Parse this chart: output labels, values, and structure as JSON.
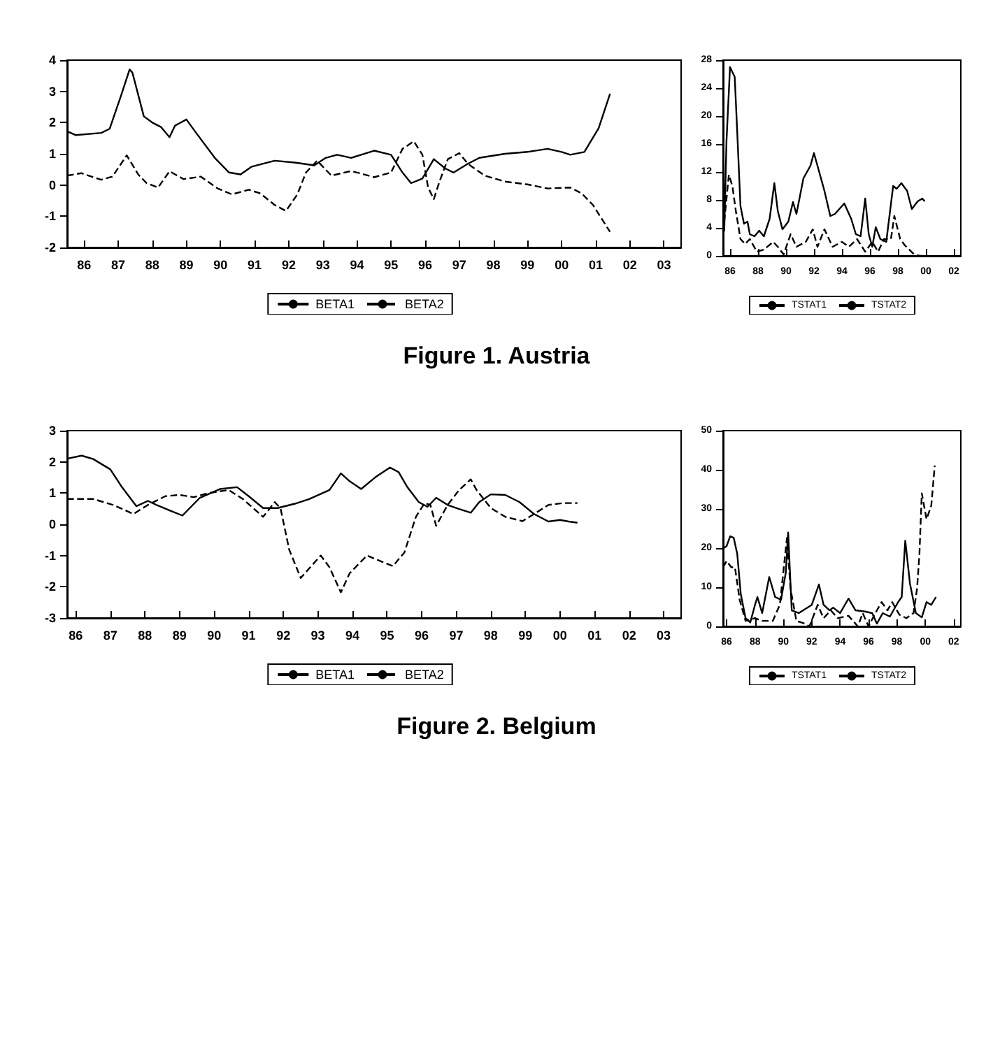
{
  "chart_data": [
    {
      "type": "line",
      "xlim": [
        "1986-01",
        "2004-01"
      ],
      "xticks": [
        {
          "value": "1986-07",
          "label": "86"
        },
        {
          "value": "1987-07",
          "label": "87"
        },
        {
          "value": "1988-07",
          "label": "88"
        },
        {
          "value": "1989-07",
          "label": "89"
        },
        {
          "value": "1990-07",
          "label": "90"
        },
        {
          "value": "1991-07",
          "label": "91"
        },
        {
          "value": "1992-07",
          "label": "92"
        },
        {
          "value": "1993-07",
          "label": "93"
        },
        {
          "value": "1994-07",
          "label": "94"
        },
        {
          "value": "1995-07",
          "label": "95"
        },
        {
          "value": "1996-07",
          "label": "96"
        },
        {
          "value": "1997-07",
          "label": "97"
        },
        {
          "value": "1998-07",
          "label": "98"
        },
        {
          "value": "1999-07",
          "label": "99"
        },
        {
          "value": "2000-07",
          "label": "00"
        },
        {
          "value": "2001-07",
          "label": "01"
        },
        {
          "value": "2002-07",
          "label": "02"
        },
        {
          "value": "2003-07",
          "label": "03"
        }
      ],
      "ylim": [
        -2,
        4
      ],
      "yticks": [
        -2,
        -1,
        0,
        1,
        2,
        3,
        4
      ],
      "grid": false,
      "legend": "bottom",
      "marker": "none",
      "annotations": [
        "Figure 1. Austria"
      ],
      "series": [
        {
          "name": "BETA1",
          "color": "#000000",
          "line_style": "solid",
          "x": [
            "1986-01",
            "1986-04",
            "1987-01",
            "1987-04",
            "1987-08",
            "1987-11",
            "1987-12",
            "1988-04",
            "1988-07",
            "1988-10",
            "1989-01",
            "1989-03",
            "1989-07",
            "1989-10",
            "1990-05",
            "1990-10",
            "1991-02",
            "1991-06",
            "1992-02",
            "1992-09",
            "1993-04",
            "1993-08",
            "1993-12",
            "1994-05",
            "1995-01",
            "1995-07",
            "1995-11",
            "1996-02",
            "1996-06",
            "1996-10",
            "1997-02",
            "1997-05",
            "1997-10",
            "1998-02",
            "1998-11",
            "1999-07",
            "2000-02",
            "2000-07",
            "2000-10",
            "2001-03",
            "2001-08",
            "2001-12"
          ],
          "values": [
            1.72,
            1.6,
            1.67,
            1.8,
            2.86,
            3.7,
            3.6,
            2.2,
            2.0,
            1.86,
            1.53,
            1.9,
            2.1,
            1.72,
            0.87,
            0.4,
            0.34,
            0.59,
            0.78,
            0.72,
            0.63,
            0.87,
            0.97,
            0.87,
            1.1,
            0.97,
            0.4,
            0.06,
            0.21,
            0.83,
            0.53,
            0.4,
            0.68,
            0.87,
            1.0,
            1.06,
            1.16,
            1.06,
            0.97,
            1.06,
            1.82,
            2.92
          ]
        },
        {
          "name": "BETA2",
          "color": "#000000",
          "line_style": "dashed",
          "x": [
            "1986-01",
            "1986-06",
            "1987-01",
            "1987-05",
            "1987-10",
            "1988-02",
            "1988-05",
            "1988-09",
            "1989-01",
            "1989-06",
            "1989-12",
            "1990-06",
            "1990-11",
            "1991-05",
            "1991-09",
            "1992-02",
            "1992-06",
            "1992-10",
            "1993-01",
            "1993-05",
            "1993-10",
            "1994-05",
            "1995-01",
            "1995-07",
            "1995-11",
            "1996-03",
            "1996-06",
            "1996-08",
            "1996-10",
            "1996-12",
            "1997-03",
            "1997-07",
            "1997-10",
            "1998-04",
            "1998-11",
            "1999-07",
            "2000-02",
            "2000-10",
            "2001-02",
            "2001-06",
            "2001-12"
          ],
          "values": [
            0.3,
            0.38,
            0.17,
            0.27,
            0.95,
            0.34,
            0.06,
            -0.08,
            0.44,
            0.19,
            0.27,
            -0.11,
            -0.3,
            -0.15,
            -0.27,
            -0.64,
            -0.83,
            -0.3,
            0.4,
            0.78,
            0.3,
            0.45,
            0.25,
            0.4,
            1.16,
            1.4,
            0.97,
            -0.08,
            -0.45,
            0.11,
            0.83,
            1.02,
            0.68,
            0.3,
            0.11,
            0.02,
            -0.11,
            -0.08,
            -0.27,
            -0.64,
            -1.5
          ]
        }
      ]
    },
    {
      "type": "line",
      "xlim": [
        "1986-01",
        "2003-01"
      ],
      "xticks": [
        {
          "value": "1986-07",
          "label": "86"
        },
        {
          "value": "1988-07",
          "label": "88"
        },
        {
          "value": "1990-07",
          "label": "90"
        },
        {
          "value": "1992-07",
          "label": "92"
        },
        {
          "value": "1994-07",
          "label": "94"
        },
        {
          "value": "1996-07",
          "label": "96"
        },
        {
          "value": "1998-07",
          "label": "98"
        },
        {
          "value": "2000-07",
          "label": "00"
        },
        {
          "value": "2002-07",
          "label": "02"
        }
      ],
      "ylim": [
        0,
        28
      ],
      "yticks": [
        0,
        4,
        8,
        12,
        16,
        20,
        24,
        28
      ],
      "grid": false,
      "legend": "bottom",
      "marker": "none",
      "series": [
        {
          "name": "TSTAT1",
          "color": "#000000",
          "line_style": "solid",
          "x": [
            "1986-02",
            "1986-04",
            "1986-07",
            "1986-11",
            "1987-01",
            "1987-04",
            "1987-07",
            "1987-10",
            "1987-12",
            "1988-04",
            "1988-08",
            "1988-12",
            "1989-05",
            "1989-09",
            "1989-12",
            "1990-04",
            "1990-09",
            "1991-01",
            "1991-04",
            "1991-10",
            "1992-04",
            "1992-07",
            "1992-10",
            "1993-04",
            "1993-09",
            "1994-01",
            "1994-09",
            "1995-03",
            "1995-07",
            "1995-11",
            "1996-03",
            "1996-06",
            "1996-09",
            "1996-12",
            "1997-04",
            "1997-09",
            "1997-12",
            "1998-03",
            "1998-06",
            "1998-10",
            "1999-03",
            "1999-07",
            "1999-12",
            "2000-04",
            "2000-06"
          ],
          "values": [
            3.5,
            16.5,
            27,
            25.6,
            18.3,
            7.1,
            4.6,
            4.9,
            3.1,
            2.8,
            3.6,
            2.8,
            5.3,
            10.4,
            6.4,
            3.8,
            4.9,
            7.7,
            6.0,
            11.1,
            12.9,
            14.7,
            12.9,
            9.3,
            5.7,
            6.0,
            7.5,
            5.3,
            3.1,
            2.8,
            8.2,
            3.1,
            1.3,
            4.1,
            2.4,
            2.0,
            6.0,
            10.0,
            9.6,
            10.4,
            9.3,
            6.7,
            7.8,
            8.2,
            7.8
          ]
        },
        {
          "name": "TSTAT2",
          "color": "#000000",
          "line_style": "dashed",
          "x": [
            "1986-02",
            "1986-06",
            "1986-09",
            "1986-12",
            "1987-04",
            "1987-08",
            "1987-12",
            "1988-06",
            "1988-12",
            "1989-08",
            "1989-12",
            "1990-05",
            "1990-11",
            "1991-04",
            "1991-12",
            "1992-06",
            "1992-10",
            "1993-04",
            "1993-11",
            "1994-07",
            "1995-01",
            "1995-08",
            "1996-03",
            "1996-09",
            "1997-02",
            "1997-07",
            "1998-01",
            "1998-04",
            "1998-09",
            "1999-01",
            "1999-09",
            "2000-02",
            "2000-06"
          ],
          "values": [
            4.9,
            11.6,
            10.0,
            6.4,
            2.4,
            1.7,
            2.4,
            0.6,
            0.9,
            2.0,
            1.3,
            0.2,
            3.1,
            1.3,
            2.0,
            3.8,
            1.3,
            3.8,
            1.3,
            2.0,
            1.3,
            2.4,
            0.6,
            2.0,
            0.6,
            2.4,
            2.4,
            5.7,
            2.4,
            1.5,
            0.2,
            0,
            0
          ]
        }
      ]
    },
    {
      "type": "line",
      "xlim": [
        "1986-04",
        "2004-01"
      ],
      "xticks": [
        {
          "value": "1986-07",
          "label": "86"
        },
        {
          "value": "1987-07",
          "label": "87"
        },
        {
          "value": "1988-07",
          "label": "88"
        },
        {
          "value": "1989-07",
          "label": "89"
        },
        {
          "value": "1990-07",
          "label": "90"
        },
        {
          "value": "1991-07",
          "label": "91"
        },
        {
          "value": "1992-07",
          "label": "92"
        },
        {
          "value": "1993-07",
          "label": "93"
        },
        {
          "value": "1994-07",
          "label": "94"
        },
        {
          "value": "1995-07",
          "label": "95"
        },
        {
          "value": "1996-07",
          "label": "96"
        },
        {
          "value": "1997-07",
          "label": "97"
        },
        {
          "value": "1998-07",
          "label": "98"
        },
        {
          "value": "1999-07",
          "label": "99"
        },
        {
          "value": "2000-07",
          "label": "00"
        },
        {
          "value": "2001-07",
          "label": "01"
        },
        {
          "value": "2002-07",
          "label": "02"
        },
        {
          "value": "2003-07",
          "label": "03"
        }
      ],
      "ylim": [
        -3,
        3
      ],
      "yticks": [
        -3,
        -2,
        -1,
        0,
        1,
        2,
        3
      ],
      "grid": false,
      "legend": "bottom",
      "marker": "none",
      "annotations": [
        "Figure 2. Belgium"
      ],
      "series": [
        {
          "name": "BETA1",
          "color": "#000000",
          "line_style": "solid",
          "x": [
            "1986-04",
            "1986-09",
            "1987-01",
            "1987-07",
            "1987-11",
            "1988-04",
            "1988-08",
            "1988-11",
            "1989-04",
            "1989-08",
            "1990-02",
            "1990-09",
            "1991-03",
            "1991-07",
            "1991-12",
            "1992-05",
            "1992-11",
            "1993-04",
            "1993-11",
            "1994-03",
            "1994-06",
            "1994-10",
            "1995-03",
            "1995-08",
            "1995-11",
            "1996-02",
            "1996-06",
            "1996-09",
            "1996-12",
            "1997-04",
            "1997-08",
            "1997-12",
            "1998-03",
            "1998-07",
            "1998-12",
            "1999-05",
            "1999-10",
            "2000-03",
            "2000-07",
            "2000-10",
            "2001-01"
          ],
          "values": [
            2.1,
            2.2,
            2.09,
            1.76,
            1.19,
            0.58,
            0.75,
            0.62,
            0.43,
            0.28,
            0.85,
            1.13,
            1.19,
            0.9,
            0.52,
            0.52,
            0.66,
            0.81,
            1.1,
            1.63,
            1.38,
            1.13,
            1.51,
            1.82,
            1.67,
            1.19,
            0.71,
            0.56,
            0.85,
            0.62,
            0.49,
            0.37,
            0.71,
            0.96,
            0.94,
            0.71,
            0.33,
            0.09,
            0.14,
            0.09,
            0.05
          ]
        },
        {
          "name": "BETA2",
          "color": "#000000",
          "line_style": "dashed",
          "x": [
            "1986-04",
            "1987-01",
            "1987-08",
            "1988-03",
            "1988-08",
            "1989-02",
            "1989-07",
            "1989-12",
            "1990-05",
            "1990-12",
            "1991-05",
            "1991-12",
            "1992-04",
            "1992-06",
            "1992-09",
            "1993-01",
            "1993-04",
            "1993-08",
            "1993-11",
            "1994-03",
            "1994-06",
            "1994-12",
            "1995-05",
            "1995-09",
            "1996-01",
            "1996-05",
            "1996-08",
            "1996-10",
            "1996-12",
            "1997-04",
            "1997-08",
            "1997-12",
            "1998-02",
            "1998-07",
            "1998-12",
            "1999-06",
            "1999-10",
            "2000-03",
            "2000-08",
            "2001-01"
          ],
          "values": [
            0.81,
            0.81,
            0.62,
            0.33,
            0.62,
            0.9,
            0.94,
            0.87,
            1.0,
            1.1,
            0.81,
            0.24,
            0.71,
            0.52,
            -0.81,
            -1.72,
            -1.41,
            -1.0,
            -1.38,
            -2.18,
            -1.57,
            -1.0,
            -1.19,
            -1.34,
            -0.9,
            0.24,
            0.68,
            0.62,
            -0.05,
            0.62,
            1.1,
            1.44,
            1.1,
            0.52,
            0.24,
            0.1,
            0.33,
            0.62,
            0.68,
            0.68
          ]
        }
      ]
    },
    {
      "type": "line",
      "xlim": [
        "1986-04",
        "2003-01"
      ],
      "xticks": [
        {
          "value": "1986-07",
          "label": "86"
        },
        {
          "value": "1988-07",
          "label": "88"
        },
        {
          "value": "1990-07",
          "label": "90"
        },
        {
          "value": "1992-07",
          "label": "92"
        },
        {
          "value": "1994-07",
          "label": "94"
        },
        {
          "value": "1996-07",
          "label": "96"
        },
        {
          "value": "1998-07",
          "label": "98"
        },
        {
          "value": "2000-07",
          "label": "00"
        },
        {
          "value": "2002-07",
          "label": "02"
        }
      ],
      "ylim": [
        0,
        50
      ],
      "yticks": [
        0,
        10,
        20,
        30,
        40,
        50
      ],
      "grid": false,
      "legend": "bottom",
      "marker": "none",
      "series": [
        {
          "name": "TSTAT1",
          "color": "#000000",
          "line_style": "solid",
          "x": [
            "1986-04",
            "1986-07",
            "1986-10",
            "1987-01",
            "1987-04",
            "1987-07",
            "1987-11",
            "1988-03",
            "1988-07",
            "1988-09",
            "1989-01",
            "1989-07",
            "1989-12",
            "1990-05",
            "1990-09",
            "1990-11",
            "1991-02",
            "1991-08",
            "1992-07",
            "1993-01",
            "1993-05",
            "1993-10",
            "1994-01",
            "1994-07",
            "1995-02",
            "1995-08",
            "1996-04",
            "1996-10",
            "1997-02",
            "1997-07",
            "1998-01",
            "1998-08",
            "1998-11",
            "1999-02",
            "1999-06",
            "1999-11",
            "2000-04",
            "2000-08",
            "2000-12",
            "2001-04"
          ],
          "values": [
            19.9,
            20.5,
            23.0,
            22.6,
            18.5,
            8.2,
            2.1,
            1.0,
            5.5,
            7.5,
            3.4,
            12.6,
            7.5,
            6.8,
            13.7,
            24.0,
            4.1,
            3.4,
            5.5,
            10.7,
            5.5,
            4.1,
            4.8,
            3.4,
            7.1,
            4.1,
            3.8,
            3.4,
            0.7,
            3.4,
            2.5,
            6.2,
            7.5,
            21.9,
            11.0,
            3.4,
            2.3,
            6.2,
            5.5,
            7.5
          ]
        },
        {
          "name": "TSTAT2",
          "color": "#000000",
          "line_style": "dashed",
          "x": [
            "1986-04",
            "1986-07",
            "1986-11",
            "1987-02",
            "1987-06",
            "1987-11",
            "1988-07",
            "1989-01",
            "1989-10",
            "1990-04",
            "1990-10",
            "1991-01",
            "1991-06",
            "1992-01",
            "1992-05",
            "1992-12",
            "1993-05",
            "1993-11",
            "1994-05",
            "1995-02",
            "1995-10",
            "1996-02",
            "1996-07",
            "1996-12",
            "1997-06",
            "1997-11",
            "1998-03",
            "1998-09",
            "1999-03",
            "1999-09",
            "1999-12",
            "2000-02",
            "2000-04",
            "2000-08",
            "2000-12",
            "2001-03"
          ],
          "values": [
            15.1,
            16.7,
            15.1,
            15.1,
            6.8,
            1.4,
            2.1,
            1.4,
            1.4,
            5.5,
            22.6,
            9.6,
            1.4,
            0.7,
            0,
            5.5,
            2.1,
            4.1,
            2.1,
            2.7,
            0,
            3.4,
            0,
            3.0,
            6.2,
            4.1,
            6.2,
            3.0,
            2.1,
            3.4,
            9.6,
            18.5,
            34.0,
            27.4,
            30.8,
            41.1
          ]
        }
      ]
    }
  ]
}
